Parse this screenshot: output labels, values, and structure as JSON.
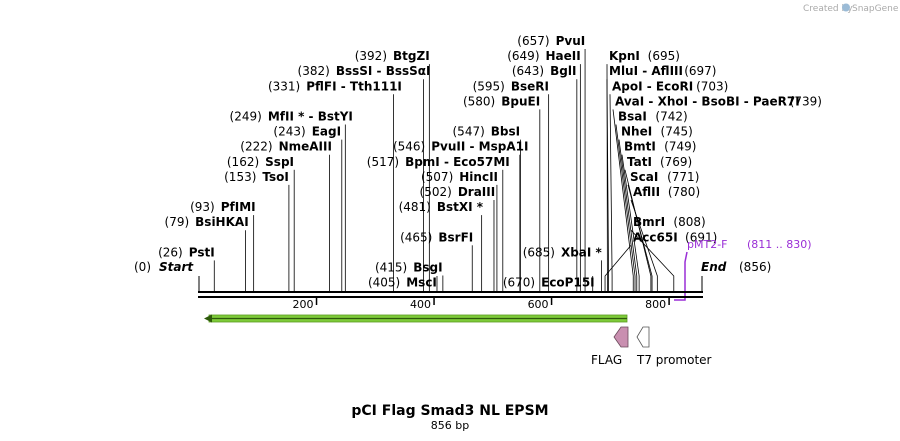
{
  "credit": {
    "text": "Created by",
    "brand": "SnapGene"
  },
  "map": {
    "length_bp": 856,
    "title": "pCI Flag Smad3 NL EPSM",
    "subtitle": "856 bp",
    "ticks": [
      200,
      400,
      600,
      800
    ],
    "sites": [
      {
        "pos": "(657)",
        "name": "PvuI",
        "bp": 657,
        "tier": 0
      },
      {
        "pos": "(392)",
        "name": "BtgZI",
        "bp": 392,
        "tier": 1
      },
      {
        "pos": "(649)",
        "name": "HaeII",
        "bp": 649,
        "tier": 1
      },
      {
        "pos": "(382)",
        "name": "BssSI  - BssSαI",
        "bp": 382,
        "tier": 2
      },
      {
        "pos": "(643)",
        "name": "BglI",
        "bp": 643,
        "tier": 2
      },
      {
        "pos": "(331)",
        "name": "PflFI  - Tth111I",
        "bp": 331,
        "tier": 3
      },
      {
        "pos": "(595)",
        "name": "BseRI",
        "bp": 595,
        "tier": 3
      },
      {
        "pos": "(580)",
        "name": "BpuEI",
        "bp": 580,
        "tier": 4
      },
      {
        "pos": "(249)",
        "name": "MfII * - BstYI",
        "bp": 249,
        "tier": 5
      },
      {
        "pos": "(243)",
        "name": "EagI",
        "bp": 243,
        "tier": 6
      },
      {
        "pos": "(547)",
        "name": "BbsI",
        "bp": 547,
        "tier": 6
      },
      {
        "pos": "(222)",
        "name": "NmeAIII",
        "bp": 222,
        "tier": 7
      },
      {
        "pos": "(546)",
        "name": "PvuII  - MspA1I",
        "bp": 546,
        "tier": 7
      },
      {
        "pos": "(162)",
        "name": "SspI",
        "bp": 162,
        "tier": 8
      },
      {
        "pos": "(517)",
        "name": "BpmI  - Eco57MI",
        "bp": 517,
        "tier": 8
      },
      {
        "pos": "(153)",
        "name": "TsoI",
        "bp": 153,
        "tier": 9
      },
      {
        "pos": "(507)",
        "name": "HincII",
        "bp": 507,
        "tier": 9
      },
      {
        "pos": "(502)",
        "name": "DraIII",
        "bp": 502,
        "tier": 10
      },
      {
        "pos": "(93)",
        "name": "PfIMI",
        "bp": 93,
        "tier": 11
      },
      {
        "pos": "(481)",
        "name": "BstXI *",
        "bp": 481,
        "tier": 11
      },
      {
        "pos": "(79)",
        "name": "BsiHKAI",
        "bp": 79,
        "tier": 12
      },
      {
        "pos": "(465)",
        "name": "BsrFI",
        "bp": 465,
        "tier": 13
      },
      {
        "pos": "(691)",
        "name": "Acc65I",
        "bp": 691,
        "tier": 13
      },
      {
        "pos": "(26)",
        "name": "PstI",
        "bp": 26,
        "tier": 14
      },
      {
        "pos": "(685)",
        "name": "XbaI *",
        "bp": 685,
        "tier": 14
      },
      {
        "pos": "(415)",
        "name": "BsgI",
        "bp": 415,
        "tier": 15
      },
      {
        "pos": "(405)",
        "name": "MscI",
        "bp": 405,
        "tier": 16
      },
      {
        "pos": "(670)",
        "name": "EcoP15I",
        "bp": 670,
        "tier": 16
      },
      {
        "pos": "(695)",
        "name": "KpnI",
        "bp": 695,
        "tier": 1
      },
      {
        "pos": "(697)",
        "name": "MluI  - AflIII",
        "bp": 697,
        "tier": 2
      },
      {
        "pos": "(703)",
        "name": "ApoI  - EcoRI",
        "bp": 703,
        "tier": 3
      },
      {
        "pos": "(739)",
        "name": "AvaI  - XhoI  - BsoBI  - PaeR7I",
        "bp": 739,
        "tier": 4
      },
      {
        "pos": "(742)",
        "name": "BsaI",
        "bp": 742,
        "tier": 5
      },
      {
        "pos": "(745)",
        "name": "NheI",
        "bp": 745,
        "tier": 6
      },
      {
        "pos": "(749)",
        "name": "BmtI",
        "bp": 749,
        "tier": 7
      },
      {
        "pos": "(769)",
        "name": "TatI",
        "bp": 769,
        "tier": 8
      },
      {
        "pos": "(771)",
        "name": "ScaI",
        "bp": 771,
        "tier": 9
      },
      {
        "pos": "(780)",
        "name": "AflII",
        "bp": 780,
        "tier": 10
      },
      {
        "pos": "(808)",
        "name": "BmrI",
        "bp": 808,
        "tier": 12
      }
    ],
    "start": {
      "pos": "(0)",
      "name": "Start"
    },
    "end": {
      "name": "End",
      "pos": "(856)"
    },
    "primer": {
      "name": "pMT2-F",
      "range": "(811 .. 830)",
      "color": "#9a2fd6"
    },
    "features": [
      {
        "name": "FLAG",
        "color": "#c98fb0"
      },
      {
        "name": "T7 promoter",
        "color": "#ffffff"
      }
    ],
    "orf_color": "#7ecb3a"
  }
}
